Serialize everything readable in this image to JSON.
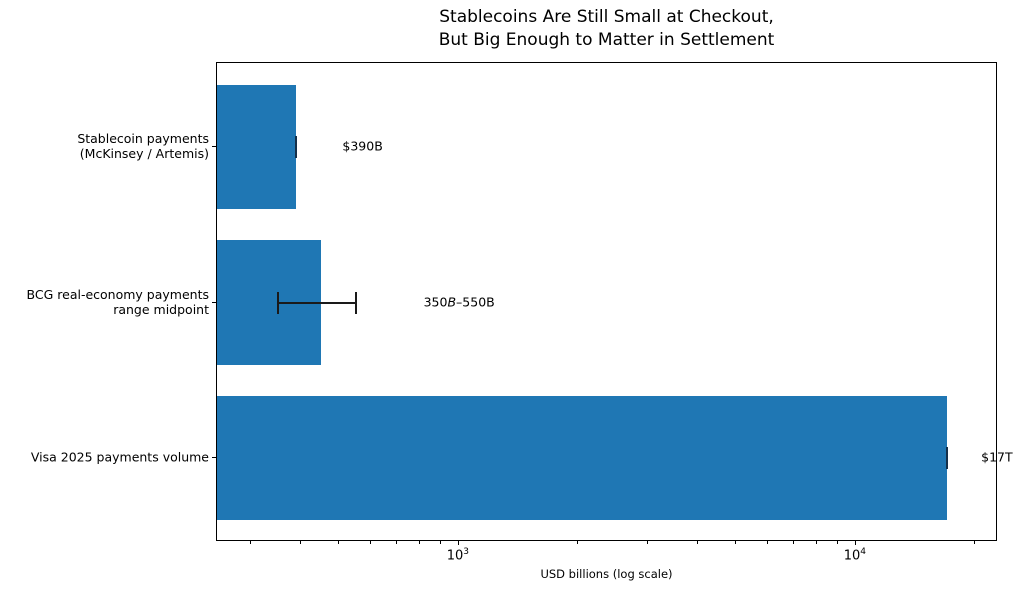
{
  "title": {
    "line1": "Stablecoins Are Still Small at Checkout,",
    "line2": "But Big Enough to Matter in Settlement"
  },
  "chart_data": {
    "type": "bar",
    "orientation": "horizontal",
    "x_scale": "log",
    "title": "Stablecoins Are Still Small at Checkout, But Big Enough to Matter in Settlement",
    "xlabel": "USD billions (log scale)",
    "ylabel": "",
    "xlim": [
      246,
      22800
    ],
    "grid": false,
    "legend": false,
    "bar_color": "#1f77b4",
    "error_color": "#1a1a1a",
    "x_major_ticks": [
      {
        "value": 1000,
        "base": "10",
        "exp": "3"
      },
      {
        "value": 10000,
        "base": "10",
        "exp": "4"
      }
    ],
    "x_minor_ticks": [
      300,
      400,
      500,
      600,
      700,
      800,
      900,
      2000,
      3000,
      4000,
      5000,
      6000,
      7000,
      8000,
      9000,
      20000
    ],
    "rows": [
      {
        "label_lines": [
          "Stablecoin payments",
          "(McKinsey / Artemis)"
        ],
        "value": 390,
        "err_low": 390,
        "err_high": 390,
        "annotation": [
          {
            "t": "$390B"
          }
        ],
        "ann_x": 512
      },
      {
        "label_lines": [
          "BCG real-economy payments",
          "range midpoint"
        ],
        "value": 450,
        "err_low": 350,
        "err_high": 550,
        "annotation": [
          {
            "t": "350"
          },
          {
            "t": "B",
            "italic": true
          },
          {
            "t": "–550B"
          }
        ],
        "ann_x": 820
      },
      {
        "label_lines": [
          "Visa 2025 payments volume"
        ],
        "value": 17000,
        "err_low": 17000,
        "err_high": 17000,
        "annotation": [
          {
            "t": "$17T"
          }
        ],
        "ann_x": 20800
      }
    ]
  }
}
